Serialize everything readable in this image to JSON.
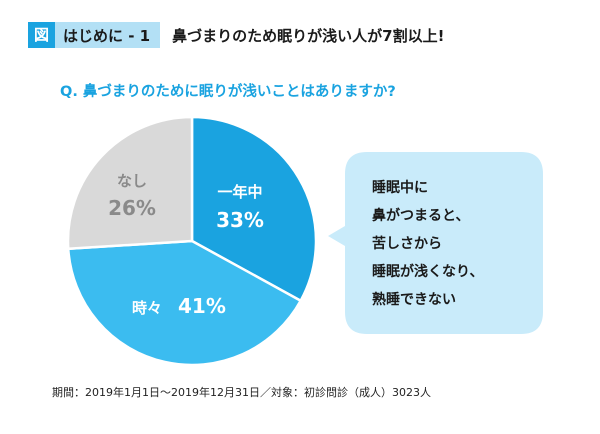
{
  "header": {
    "tag": "図",
    "label": "はじめに - 1",
    "headline": "鼻づまりのため眠りが浅い人が7割以上!"
  },
  "question": "Q. 鼻づまりのために眠りが浅いことはありますか?",
  "chart_data": {
    "type": "pie",
    "start_angle_deg": 0,
    "direction": "clockwise",
    "slices": [
      {
        "label": "一年中",
        "value": 33,
        "value_text": "33%",
        "color": "#1aa3e0",
        "text_color": "#ffffff"
      },
      {
        "label": "時々",
        "value": 41,
        "value_text": "41%",
        "color": "#3bbcf0",
        "text_color": "#ffffff"
      },
      {
        "label": "なし",
        "value": 26,
        "value_text": "26%",
        "color": "#d9d9d9",
        "text_color": "#8a8a8a"
      }
    ]
  },
  "callout": {
    "lines": [
      "睡眠中に",
      "鼻がつまると、",
      "苦しさから",
      "睡眠が浅くなり、",
      "熟睡できない"
    ],
    "color": "#c9ebfa"
  },
  "footnote": "期間：2019年1月1日〜2019年12月31日／対象：初診問診（成人）3023人"
}
